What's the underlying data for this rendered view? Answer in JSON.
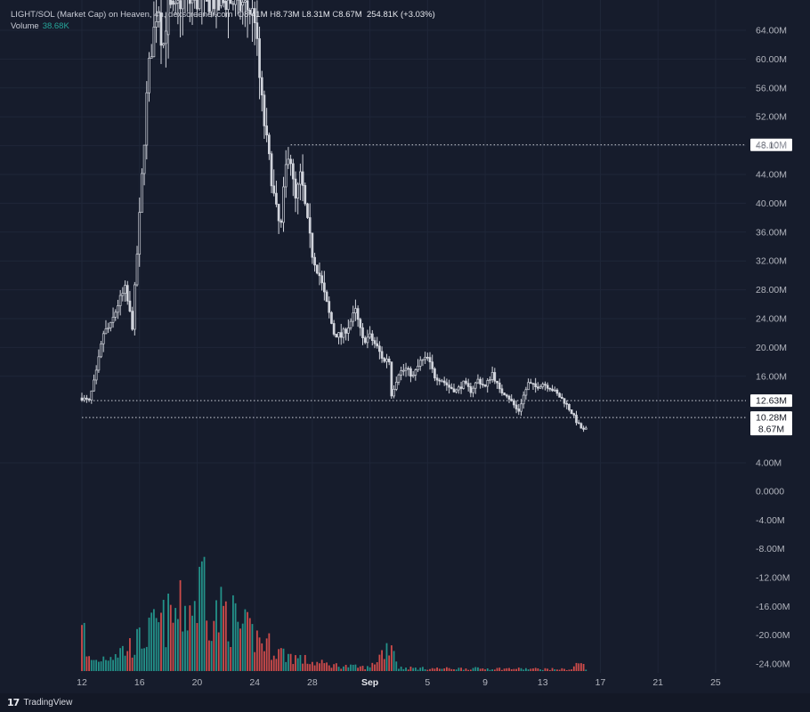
{
  "legend": {
    "pair": "LIGHT/SOL (Market Cap) on Heaven, 4h, dexscreener.com",
    "open_label": "O",
    "open": "8.41M",
    "high_label": "H",
    "high": "8.73M",
    "low_label": "L",
    "low": "8.31M",
    "close_label": "C",
    "close": "8.67M",
    "change": "254.81K (+3.03%)",
    "volume_label": "Volume",
    "volume": "38.68K"
  },
  "branding": {
    "text": "TradingView",
    "logo": "tv-logo-icon"
  },
  "colors": {
    "background": "#161c2c",
    "up": "#26a69a",
    "down": "#ef5350",
    "candle": "#d1d4dc",
    "grid": "#1f2638"
  },
  "chart_data": {
    "type": "candlestick",
    "interval": "4h",
    "price_axis": {
      "ylim": [
        2000000,
        66500000
      ],
      "ticks": [
        {
          "value": 64000000,
          "label": "64.00M"
        },
        {
          "value": 60000000,
          "label": "60.00M"
        },
        {
          "value": 56000000,
          "label": "56.00M"
        },
        {
          "value": 52000000,
          "label": "52.00M"
        },
        {
          "value": 48000000,
          "label": "48.00M"
        },
        {
          "value": 44000000,
          "label": "44.00M"
        },
        {
          "value": 40000000,
          "label": "40.00M"
        },
        {
          "value": 36000000,
          "label": "36.00M"
        },
        {
          "value": 32000000,
          "label": "32.00M"
        },
        {
          "value": 28000000,
          "label": "28.00M"
        },
        {
          "value": 24000000,
          "label": "24.00M"
        },
        {
          "value": 20000000,
          "label": "20.00M"
        },
        {
          "value": 16000000,
          "label": "16.00M"
        },
        {
          "value": 4000000,
          "label": "4.00M"
        }
      ],
      "lower_ticks": [
        {
          "value": 0,
          "label": "0.0000"
        },
        {
          "value": -4000000,
          "label": "-4.00M"
        },
        {
          "value": -8000000,
          "label": "-8.00M"
        },
        {
          "value": -12000000,
          "label": "-12.00M"
        },
        {
          "value": -16000000,
          "label": "-16.00M"
        },
        {
          "value": -20000000,
          "label": "-20.00M"
        },
        {
          "value": -24000000,
          "label": "-24.00M"
        }
      ]
    },
    "x_ticks": [
      {
        "day": 12,
        "label": "12"
      },
      {
        "day": 16,
        "label": "16"
      },
      {
        "day": 20,
        "label": "20"
      },
      {
        "day": 24,
        "label": "24"
      },
      {
        "day": 28,
        "label": "28"
      },
      {
        "day": 32,
        "label": "Sep",
        "bold": true
      },
      {
        "day": 36,
        "label": "5"
      },
      {
        "day": 40,
        "label": "9"
      },
      {
        "day": 44,
        "label": "13"
      },
      {
        "day": 48,
        "label": "17"
      },
      {
        "day": 52,
        "label": "21"
      },
      {
        "day": 56,
        "label": "25"
      }
    ],
    "horizontal_lines": [
      {
        "value": 48100000,
        "label": "48.10M",
        "from_day": 26.5
      },
      {
        "value": 12630000,
        "label": "12.63M",
        "from_day": 12.8
      },
      {
        "value": 10280000,
        "label": "10.28M",
        "from_day": 12
      },
      {
        "value": 8670000,
        "label": "8.67M",
        "from_day": null
      }
    ],
    "price_path": [
      [
        12.0,
        13.0
      ],
      [
        12.5,
        12.5
      ],
      [
        13.0,
        16.5
      ],
      [
        13.5,
        22
      ],
      [
        14.0,
        23
      ],
      [
        14.5,
        26
      ],
      [
        15.0,
        28
      ],
      [
        15.5,
        23
      ],
      [
        16.0,
        38
      ],
      [
        16.3,
        48
      ],
      [
        16.6,
        58
      ],
      [
        17.0,
        64
      ],
      [
        17.3,
        68
      ],
      [
        17.6,
        61
      ],
      [
        18.0,
        68
      ],
      [
        18.4,
        66
      ],
      [
        18.8,
        68
      ],
      [
        19.2,
        68
      ],
      [
        20.0,
        68
      ],
      [
        21.0,
        68
      ],
      [
        22.0,
        68
      ],
      [
        23.0,
        68
      ],
      [
        24.0,
        66
      ],
      [
        24.3,
        58
      ],
      [
        24.6,
        52
      ],
      [
        25.0,
        46
      ],
      [
        25.4,
        40
      ],
      [
        25.8,
        36
      ],
      [
        26.1,
        44
      ],
      [
        26.4,
        48.1
      ],
      [
        26.8,
        40
      ],
      [
        27.2,
        44
      ],
      [
        27.6,
        38
      ],
      [
        28.0,
        33
      ],
      [
        28.5,
        30
      ],
      [
        29.0,
        26
      ],
      [
        29.5,
        22
      ],
      [
        30.0,
        21.5
      ],
      [
        30.5,
        23
      ],
      [
        31.0,
        25
      ],
      [
        31.5,
        21
      ],
      [
        32.0,
        21.5
      ],
      [
        32.5,
        20
      ],
      [
        33.0,
        18
      ],
      [
        33.3,
        19
      ],
      [
        33.5,
        13.5
      ],
      [
        34.0,
        16.5
      ],
      [
        34.5,
        17
      ],
      [
        35.0,
        16
      ],
      [
        35.5,
        18
      ],
      [
        36.0,
        18.5
      ],
      [
        36.5,
        16
      ],
      [
        37.0,
        15.5
      ],
      [
        37.5,
        14.5
      ],
      [
        38.0,
        14
      ],
      [
        38.5,
        15
      ],
      [
        39.0,
        14
      ],
      [
        39.5,
        15.5
      ],
      [
        40.0,
        14.5
      ],
      [
        40.5,
        16.5
      ],
      [
        41.0,
        14
      ],
      [
        41.5,
        13.5
      ],
      [
        42.0,
        12
      ],
      [
        42.3,
        11
      ],
      [
        42.6,
        13
      ],
      [
        43.0,
        15
      ],
      [
        43.5,
        14.5
      ],
      [
        44.0,
        15
      ],
      [
        44.5,
        14.5
      ],
      [
        45.0,
        13.5
      ],
      [
        45.5,
        12.5
      ],
      [
        46.0,
        11
      ],
      [
        46.4,
        9.5
      ],
      [
        46.8,
        8.5
      ],
      [
        47.0,
        8.67
      ]
    ],
    "volume_path": [
      [
        12.0,
        8
      ],
      [
        12.3,
        1.5
      ],
      [
        13.0,
        1.2
      ],
      [
        14.0,
        2
      ],
      [
        15.0,
        2.5
      ],
      [
        16.0,
        3.5
      ],
      [
        16.5,
        4
      ],
      [
        17.0,
        5
      ],
      [
        18.0,
        6
      ],
      [
        19.0,
        7
      ],
      [
        20.0,
        8
      ],
      [
        20.5,
        12
      ],
      [
        21.0,
        6
      ],
      [
        22.0,
        7
      ],
      [
        23.0,
        5
      ],
      [
        24.0,
        4
      ],
      [
        25.0,
        3
      ],
      [
        26.0,
        2
      ],
      [
        27.0,
        1.5
      ],
      [
        28.0,
        1
      ],
      [
        30.0,
        0.6
      ],
      [
        32.0,
        0.4
      ],
      [
        33.5,
        3.5
      ],
      [
        34.0,
        0.4
      ],
      [
        36.0,
        0.3
      ],
      [
        40.0,
        0.3
      ],
      [
        44.0,
        0.25
      ],
      [
        46.0,
        0.2
      ],
      [
        46.6,
        1.2
      ],
      [
        47.0,
        0.2
      ]
    ]
  }
}
